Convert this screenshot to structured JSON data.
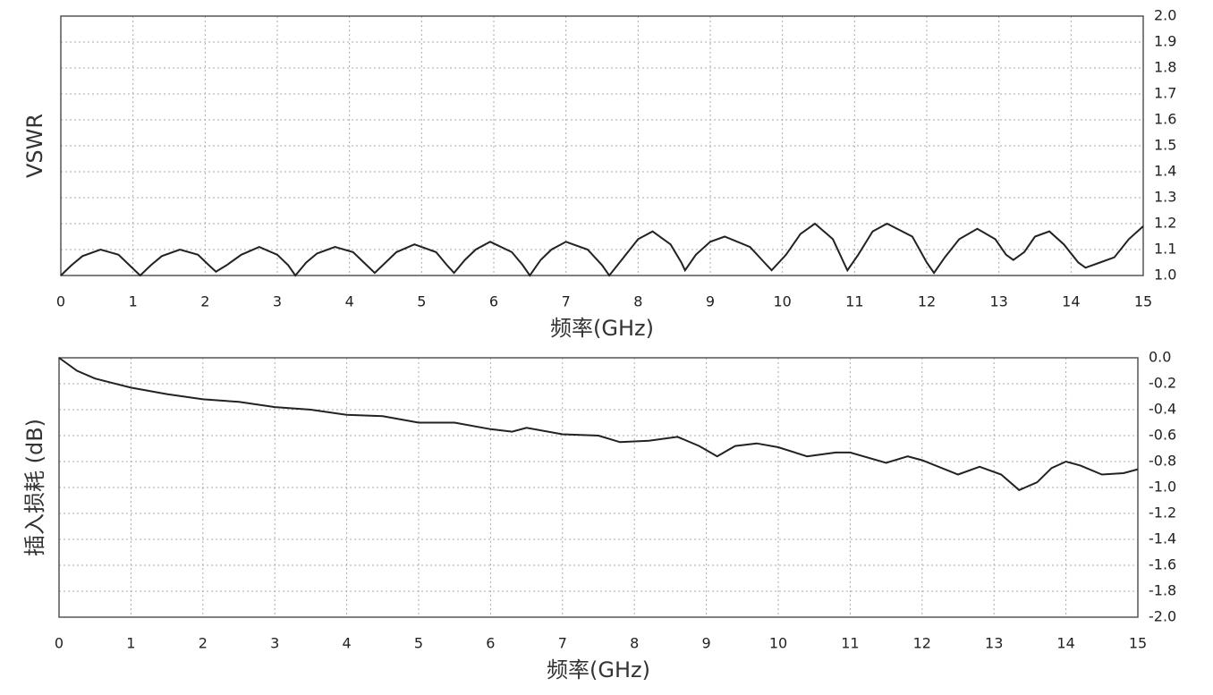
{
  "chart_data": [
    {
      "type": "line",
      "ylabel": "VSWR",
      "xlabel": "频率(GHz)",
      "color": "#222222",
      "grid": true,
      "x": [
        0,
        0.15,
        0.3,
        0.55,
        0.8,
        0.95,
        1.1,
        1.25,
        1.4,
        1.65,
        1.9,
        2.05,
        2.15,
        2.3,
        2.5,
        2.75,
        3.0,
        3.15,
        3.25,
        3.4,
        3.55,
        3.8,
        4.05,
        4.2,
        4.35,
        4.5,
        4.65,
        4.9,
        5.2,
        5.35,
        5.45,
        5.6,
        5.75,
        5.95,
        6.25,
        6.4,
        6.5,
        6.65,
        6.8,
        7.0,
        7.3,
        7.5,
        7.6,
        7.8,
        8.0,
        8.2,
        8.45,
        8.6,
        8.65,
        8.8,
        9.0,
        9.2,
        9.55,
        9.75,
        9.85,
        10.05,
        10.25,
        10.45,
        10.7,
        10.85,
        10.9,
        11.05,
        11.25,
        11.45,
        11.8,
        12.0,
        12.1,
        12.25,
        12.45,
        12.7,
        12.95,
        13.1,
        13.2,
        13.35,
        13.5,
        13.7,
        13.9,
        14.1,
        14.2,
        14.4,
        14.6,
        14.8,
        15.0
      ],
      "values": [
        1.0,
        1.04,
        1.075,
        1.1,
        1.08,
        1.04,
        1.0,
        1.04,
        1.075,
        1.1,
        1.08,
        1.04,
        1.015,
        1.04,
        1.08,
        1.11,
        1.08,
        1.04,
        1.0,
        1.05,
        1.085,
        1.11,
        1.09,
        1.05,
        1.01,
        1.05,
        1.09,
        1.12,
        1.09,
        1.04,
        1.01,
        1.06,
        1.1,
        1.13,
        1.09,
        1.04,
        1.0,
        1.06,
        1.1,
        1.13,
        1.1,
        1.04,
        1.0,
        1.07,
        1.14,
        1.17,
        1.12,
        1.05,
        1.02,
        1.08,
        1.13,
        1.15,
        1.11,
        1.05,
        1.02,
        1.08,
        1.16,
        1.2,
        1.14,
        1.05,
        1.02,
        1.08,
        1.17,
        1.2,
        1.15,
        1.05,
        1.01,
        1.07,
        1.14,
        1.18,
        1.14,
        1.08,
        1.06,
        1.09,
        1.15,
        1.17,
        1.12,
        1.05,
        1.03,
        1.05,
        1.07,
        1.14,
        1.19
      ],
      "xlim": [
        0,
        15
      ],
      "xticks": [
        0,
        1,
        2,
        3,
        4,
        5,
        6,
        7,
        8,
        9,
        10,
        11,
        12,
        13,
        14,
        15
      ],
      "ylim": [
        1,
        2
      ],
      "yticks": [
        {
          "value": 1,
          "label": "1.0"
        },
        1.1,
        1.2,
        1.3,
        1.4,
        1.5,
        1.6,
        1.7,
        1.8,
        1.9,
        {
          "value": 2,
          "label": "2.0"
        }
      ]
    },
    {
      "type": "line",
      "ylabel": "插入损耗 (dB)",
      "xlabel": "频率(GHz)",
      "color": "#222222",
      "grid": true,
      "x": [
        0,
        0.25,
        0.5,
        1,
        1.5,
        2,
        2.5,
        3,
        3.5,
        4,
        4.5,
        5,
        5.5,
        6,
        6.3,
        6.5,
        7,
        7.5,
        7.8,
        8.2,
        8.6,
        8.9,
        9.15,
        9.4,
        9.7,
        10,
        10.4,
        10.8,
        11,
        11.5,
        11.8,
        12,
        12.5,
        12.8,
        13.1,
        13.35,
        13.6,
        13.8,
        14.0,
        14.2,
        14.5,
        14.8,
        15
      ],
      "values": [
        0,
        -0.1,
        -0.16,
        -0.23,
        -0.28,
        -0.32,
        -0.34,
        -0.38,
        -0.4,
        -0.44,
        -0.45,
        -0.5,
        -0.5,
        -0.55,
        -0.57,
        -0.54,
        -0.59,
        -0.6,
        -0.65,
        -0.64,
        -0.61,
        -0.68,
        -0.76,
        -0.68,
        -0.66,
        -0.69,
        -0.76,
        -0.73,
        -0.73,
        -0.81,
        -0.76,
        -0.79,
        -0.9,
        -0.84,
        -0.9,
        -1.02,
        -0.96,
        -0.85,
        -0.8,
        -0.83,
        -0.9,
        -0.89,
        -0.86
      ],
      "xlim": [
        0,
        15
      ],
      "xticks": [
        0,
        1,
        2,
        3,
        4,
        5,
        6,
        7,
        8,
        9,
        10,
        11,
        12,
        13,
        14,
        15
      ],
      "ylim": [
        -2,
        0
      ],
      "yticks": [
        {
          "value": 0,
          "label": "0.0"
        },
        -0.2,
        -0.4,
        -0.6,
        -0.8,
        {
          "value": -1,
          "label": "-1.0"
        },
        -1.2,
        -1.4,
        -1.6,
        -1.8,
        {
          "value": -2,
          "label": "-2.0"
        }
      ]
    }
  ]
}
